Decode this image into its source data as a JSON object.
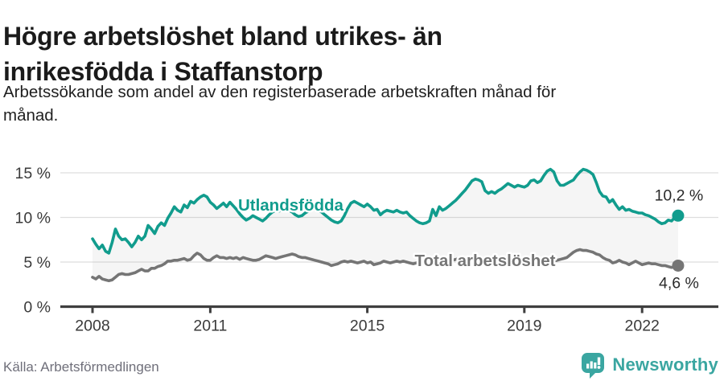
{
  "header": {
    "title_lines": [
      "Högre arbetslöshet bland utrikes- än",
      "inrikesfödda i Staffanstorp"
    ],
    "subtitle_lines": [
      "Arbetssökande som andel av den registerbaserade arbetskraften månad för",
      "månad."
    ]
  },
  "footer": {
    "source": "Källa: Arbetsförmedlingen",
    "brand": "Newsworthy",
    "brand_color": "#3aa6a1"
  },
  "chart_data": {
    "type": "line",
    "unit": "%",
    "start_year": 2008,
    "points_per_year": 12,
    "ylim": [
      0,
      16
    ],
    "grid": true,
    "fill_between_color": "rgba(120,120,120,0.07)",
    "axis_color": "#3f3f3f",
    "grid_color": "#dedede",
    "tick_label_color": "#3a3a3a",
    "end_label_color": "#2a2a2a",
    "y_ticks": [
      {
        "v": 0,
        "label": "0 %"
      },
      {
        "v": 5,
        "label": "5 %"
      },
      {
        "v": 10,
        "label": "10 %"
      },
      {
        "v": 15,
        "label": "15 %"
      }
    ],
    "x_ticks": [
      {
        "year": 2008,
        "label": "2008"
      },
      {
        "year": 2011,
        "label": "2011"
      },
      {
        "year": 2015,
        "label": "2015"
      },
      {
        "year": 2019,
        "label": "2019"
      },
      {
        "year": 2022,
        "label": "2022"
      }
    ],
    "series": [
      {
        "name": "Utlandsfödda",
        "color": "#119c8d",
        "end_label": "10,2 %",
        "values": [
          7.6,
          7.0,
          6.5,
          6.9,
          6.2,
          6.0,
          7.2,
          8.7,
          7.9,
          7.5,
          7.6,
          7.2,
          6.7,
          7.2,
          7.9,
          7.5,
          7.9,
          9.1,
          8.7,
          8.2,
          9.0,
          9.4,
          9.1,
          9.9,
          10.5,
          11.2,
          10.8,
          10.6,
          11.4,
          11.1,
          11.8,
          11.6,
          12.0,
          12.3,
          12.5,
          12.3,
          11.7,
          11.4,
          11.0,
          11.3,
          11.6,
          11.2,
          11.7,
          11.3,
          10.9,
          10.4,
          10.0,
          9.7,
          9.9,
          10.2,
          10.0,
          9.8,
          9.6,
          9.9,
          10.3,
          10.6,
          10.8,
          10.7,
          10.9,
          11.0,
          10.8,
          10.6,
          10.3,
          10.1,
          10.2,
          10.5,
          10.7,
          10.9,
          11.1,
          10.8,
          10.6,
          10.3,
          10.0,
          9.7,
          9.5,
          9.4,
          9.6,
          10.2,
          11.0,
          11.6,
          11.8,
          11.6,
          11.4,
          11.2,
          11.5,
          11.2,
          10.8,
          10.9,
          10.3,
          10.6,
          10.8,
          10.7,
          10.6,
          10.8,
          10.6,
          10.5,
          10.6,
          10.2,
          9.9,
          9.6,
          9.4,
          9.3,
          9.4,
          9.6,
          10.9,
          10.2,
          11.2,
          10.8,
          11.0,
          11.3,
          11.6,
          11.9,
          12.3,
          12.7,
          13.1,
          13.6,
          14.1,
          14.3,
          14.2,
          14.0,
          13.0,
          12.7,
          12.9,
          12.7,
          13.0,
          13.2,
          13.5,
          13.8,
          13.6,
          13.4,
          13.6,
          13.5,
          13.4,
          13.6,
          14.1,
          14.2,
          13.9,
          14.1,
          14.7,
          15.2,
          15.4,
          15.1,
          14.1,
          13.6,
          13.6,
          13.8,
          14.0,
          14.2,
          14.7,
          15.1,
          15.4,
          15.3,
          15.1,
          14.8,
          13.9,
          12.9,
          12.4,
          12.3,
          11.7,
          12.0,
          11.4,
          10.9,
          11.2,
          10.8,
          10.9,
          10.7,
          10.6,
          10.5,
          10.5,
          10.3,
          10.2,
          10.0,
          9.8,
          9.5,
          9.3,
          9.4,
          9.7,
          9.6,
          10.0,
          10.2
        ]
      },
      {
        "name": "Total arbetslöshet",
        "color": "#757575",
        "end_label": "4,6 %",
        "values": [
          3.3,
          3.1,
          3.4,
          3.1,
          3.0,
          2.9,
          3.0,
          3.3,
          3.6,
          3.7,
          3.6,
          3.6,
          3.7,
          3.8,
          4.0,
          4.2,
          4.0,
          4.0,
          4.3,
          4.3,
          4.5,
          4.6,
          4.8,
          5.1,
          5.1,
          5.2,
          5.2,
          5.3,
          5.4,
          5.2,
          5.3,
          5.7,
          6.0,
          5.8,
          5.4,
          5.2,
          5.2,
          5.5,
          5.7,
          5.5,
          5.5,
          5.4,
          5.5,
          5.4,
          5.5,
          5.3,
          5.5,
          5.4,
          5.3,
          5.2,
          5.2,
          5.3,
          5.5,
          5.7,
          5.6,
          5.5,
          5.4,
          5.5,
          5.6,
          5.7,
          5.8,
          5.9,
          5.8,
          5.6,
          5.5,
          5.5,
          5.4,
          5.3,
          5.2,
          5.1,
          5.0,
          4.9,
          4.8,
          4.6,
          4.7,
          4.8,
          5.0,
          5.1,
          5.0,
          5.1,
          5.0,
          4.9,
          5.0,
          5.1,
          4.9,
          5.0,
          4.7,
          4.8,
          4.9,
          5.1,
          5.0,
          4.9,
          5.0,
          5.1,
          5.0,
          5.1,
          5.0,
          4.9,
          4.8,
          4.9,
          5.0,
          4.9,
          5.0,
          5.1,
          5.2,
          5.1,
          5.2,
          5.1,
          5.0,
          5.1,
          5.2,
          5.3,
          5.4,
          5.3,
          5.4,
          5.5,
          5.4,
          5.3,
          5.4,
          5.3,
          5.2,
          5.1,
          5.2,
          5.1,
          5.0,
          5.1,
          5.2,
          5.1,
          5.0,
          5.1,
          5.0,
          5.1,
          5.0,
          5.1,
          5.2,
          5.1,
          5.2,
          5.3,
          5.2,
          5.1,
          5.2,
          5.1,
          5.2,
          5.3,
          5.4,
          5.5,
          5.8,
          6.1,
          6.3,
          6.4,
          6.3,
          6.3,
          6.2,
          6.1,
          5.9,
          5.8,
          5.5,
          5.3,
          5.2,
          4.9,
          5.0,
          5.2,
          5.0,
          4.9,
          4.7,
          4.9,
          5.1,
          4.9,
          4.7,
          4.8,
          4.9,
          4.8,
          4.8,
          4.7,
          4.6,
          4.6,
          4.5,
          4.4,
          4.5,
          4.6
        ]
      }
    ],
    "series_labels": [
      {
        "text": "Utlandsfödda",
        "year": 2013.05,
        "value": 10.77,
        "color": "#119c8d"
      },
      {
        "text": "Total arbetslöshet",
        "year": 2018.0,
        "value": 4.55,
        "color": "#757575"
      }
    ]
  }
}
